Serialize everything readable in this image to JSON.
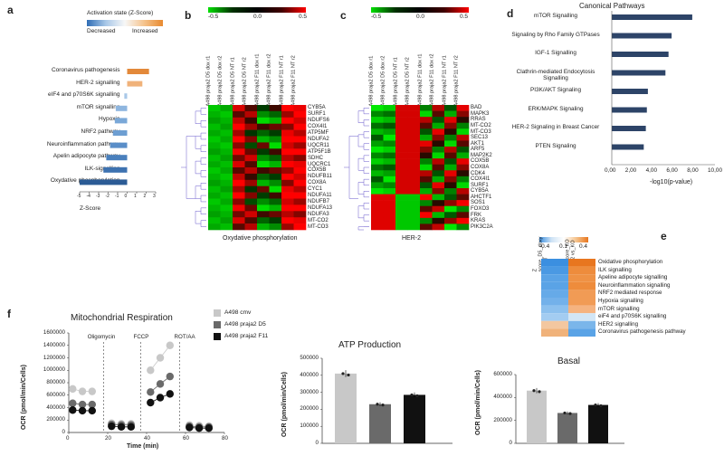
{
  "panels": {
    "a": "a",
    "b": "b",
    "c": "c",
    "d": "d",
    "e": "e",
    "f": "f"
  },
  "panel_a": {
    "legend_title": "Activation state (Z-Score)",
    "legend_left": "Decreased",
    "legend_right": "Increased",
    "xlabel": "Z-Score",
    "tick_labels": [
      "-5",
      "-4",
      "-3",
      "-2",
      "-1",
      "0",
      "1",
      "2",
      "3"
    ],
    "rows": [
      {
        "label": "Coronavirus pathogenesis",
        "value": 2.3,
        "color": "#e3893a"
      },
      {
        "label": "HER-2  signalling",
        "value": 1.6,
        "color": "#f0b27a"
      },
      {
        "label": "eIF4 and p70S6K signalling",
        "value": -0.3,
        "color": "#a9c8e8"
      },
      {
        "label": "mTOR signalling",
        "value": -1.2,
        "color": "#8fb6df"
      },
      {
        "label": "Hypoxia",
        "value": -1.3,
        "color": "#7aa8d8"
      },
      {
        "label": "NRF2 pathway",
        "value": -1.5,
        "color": "#6d9ed2"
      },
      {
        "label": "Neuroinflammation pathway",
        "value": -1.8,
        "color": "#5a8ec8"
      },
      {
        "label": "Apelin adipocyte pathway",
        "value": -2.2,
        "color": "#4a80bd"
      },
      {
        "label": "ILK-signalling",
        "value": -2.5,
        "color": "#3d72b0"
      },
      {
        "label": "Oxydative phosphorylation",
        "value": -5.0,
        "color": "#2b5b95"
      }
    ]
  },
  "panel_b": {
    "scale_ticks": [
      "-0.5",
      "0.0",
      "0.5"
    ],
    "columns": [
      "A498 praja2 D5 dox r1",
      "A498 praja2 D5 dox r2",
      "A498 praja2 D5 NT r1",
      "A498 praja2 D5 NT r2",
      "A498 praja2 F11 dox r1",
      "A498 praja2 F11 dox r2",
      "A498 praja2 F11 NT r1",
      "A498 praja2 F11 NT r2"
    ],
    "genes": [
      "CYB5A",
      "SURF1",
      "NDUFS6",
      "COX4I1",
      "ATP5MF",
      "NDUFA2",
      "UQCR11",
      "ATP5F1B",
      "SDHC",
      "UQCRC1",
      "COX5B",
      "NDUFB11",
      "COX8A",
      "CYC1",
      "NDUFA11",
      "NDUFB7",
      "NDUFA13",
      "NDUFA3",
      "MT-CO2",
      "MT-CO3"
    ],
    "caption": "Oxydative phosphorylation"
  },
  "panel_c": {
    "scale_ticks": [
      "-0.5",
      "0.0",
      "0.5"
    ],
    "columns": [
      "A498 praja2 D5 dox r1",
      "A498 praja2 D5 dox r2",
      "A498 praja2 D5 NT r1",
      "A498 praja2 D5 NT r2",
      "A498 praja2 F11 dox r1",
      "A498 praja2 F11 dox r2",
      "A498 praja2 F11 NT r1",
      "A498 praja2 F11 NT r2"
    ],
    "genes": [
      "BAD",
      "MAPK3",
      "RRAS",
      "MT-CO2",
      "MT-CO3",
      "SEC13",
      "AKT1",
      "ARF5",
      "MAP2K2",
      "COX5B",
      "COX8A",
      "CDK4",
      "COX4I1",
      "SURF1",
      "CYB5A",
      "AHCTF1",
      "SOS1",
      "FOXO3",
      "FRK",
      "KRAS",
      "PIK3C2A"
    ],
    "caption": "HER-2"
  },
  "panel_d": {
    "title": "Canonical Pathways",
    "xlabel": "-log10(p-value)",
    "tick_labels": [
      "0,00",
      "2,00",
      "4,00",
      "6,00",
      "8,00",
      "10,00"
    ],
    "rows": [
      {
        "label": "mTOR Signalling",
        "value": 7.8
      },
      {
        "label": "Signaling by Rho Family GTPases",
        "value": 5.8
      },
      {
        "label": "IGF-1 Signalling",
        "value": 5.5
      },
      {
        "label": "Clathrin-mediated Endocytosis Signalling",
        "value": 5.2
      },
      {
        "label": "PI3K/AKT Signaling",
        "value": 3.5
      },
      {
        "label": "ERK/MAPK Signaling",
        "value": 3.4
      },
      {
        "label": "HER-2 Signaling in Breast Cancer",
        "value": 3.3
      },
      {
        "label": "PTEN Signaling",
        "value": 3.1
      }
    ]
  },
  "panel_e": {
    "scale_ticks": [
      "-0.4",
      "0.1",
      "0.4"
    ],
    "columns": [
      "Z score_D5_doxy vs_NT",
      "Z score_KO pja2 vs_KO"
    ],
    "rows": [
      "Oxidative phosphorylation",
      "ILK signalling",
      "Apeline adipocyte signalling",
      "Neuroinflammation signalling",
      "NRF2 mediated response",
      "Hypoxia signalling",
      "mTOR signalling",
      "eiF4 and p70S6K signalling",
      "HER2 signalling",
      "Coronavirus pathogenesis pathway"
    ],
    "col1_colors": [
      "#3b8fe0",
      "#4a99e3",
      "#5aa3e6",
      "#5aa3e6",
      "#66aae8",
      "#73b1ea",
      "#8cc0ee",
      "#a3ccf1",
      "#f3c7a0",
      "#f0b27a"
    ],
    "col2_colors": [
      "#e8761f",
      "#ee8c3c",
      "#ef9245",
      "#ee8c3c",
      "#f19b55",
      "#f19b55",
      "#f5b380",
      "#d2e6f6",
      "#7ab6ea",
      "#5aa3e6"
    ]
  },
  "panel_f": {
    "resp_title": "Mitochondrial Respiration",
    "resp_ylabel": "OCR (pmol/min/Cells)",
    "resp_xlabel": "Time (min)",
    "resp_y_ticks": [
      "0",
      "200000",
      "400000",
      "600000",
      "800000",
      "1000000",
      "1200000",
      "1400000",
      "1600000"
    ],
    "resp_x_ticks": [
      "0",
      "20",
      "40",
      "60",
      "80"
    ],
    "injections": [
      "Oligomycin",
      "FCCP",
      "ROT/AA"
    ],
    "legend": [
      {
        "label": "A498 cmv",
        "color": "#c8c8c8"
      },
      {
        "label": "A498 praja2 D5",
        "color": "#6a6a6a"
      },
      {
        "label": "A498 praja2 F11",
        "color": "#111111"
      }
    ],
    "series": [
      {
        "name": "A498 cmv",
        "x": [
          2,
          7,
          12,
          22,
          27,
          32,
          42,
          47,
          52,
          62,
          67,
          72
        ],
        "y": [
          700000,
          660000,
          660000,
          150000,
          140000,
          140000,
          1000000,
          1200000,
          1400000,
          120000,
          110000,
          100000
        ]
      },
      {
        "name": "A498 praja2 D5",
        "x": [
          2,
          7,
          12,
          22,
          27,
          32,
          42,
          47,
          52,
          62,
          67,
          72
        ],
        "y": [
          470000,
          450000,
          450000,
          130000,
          120000,
          120000,
          650000,
          780000,
          900000,
          100000,
          90000,
          90000
        ]
      },
      {
        "name": "A498 praja2 F11",
        "x": [
          2,
          7,
          12,
          22,
          27,
          32,
          42,
          47,
          52,
          62,
          67,
          72
        ],
        "y": [
          360000,
          350000,
          350000,
          100000,
          90000,
          90000,
          480000,
          560000,
          620000,
          80000,
          70000,
          70000
        ]
      }
    ],
    "atp_title": "ATP Production",
    "atp_ylabel": "OCR (pmol/min/Cells)",
    "atp_y_ticks": [
      "0",
      "100000",
      "200000",
      "300000",
      "400000",
      "500000"
    ],
    "atp_values": [
      410000,
      230000,
      285000
    ],
    "basal_title": "Basal",
    "basal_ylabel": "OCR (pmol/min/Cells)",
    "basal_y_ticks": [
      "0",
      "200000",
      "400000",
      "600000"
    ],
    "basal_values": [
      460000,
      265000,
      335000
    ]
  },
  "chart_data": [
    {
      "type": "bar",
      "title": "Activation state (Z-Score)",
      "xlabel": "Z-Score",
      "categories": [
        "Coronavirus pathogenesis",
        "HER-2 signalling",
        "eIF4 and p70S6K signalling",
        "mTOR signalling",
        "Hypoxia",
        "NRF2 pathway",
        "Neuroinflammation pathway",
        "Apelin adipocyte pathway",
        "ILK-signalling",
        "Oxydative phosphorylation"
      ],
      "values": [
        2.3,
        1.6,
        -0.3,
        -1.2,
        -1.3,
        -1.5,
        -1.8,
        -2.2,
        -2.5,
        -5.0
      ],
      "xlim": [
        -5,
        3
      ]
    },
    {
      "type": "bar",
      "title": "Canonical Pathways",
      "xlabel": "-log10(p-value)",
      "categories": [
        "mTOR Signalling",
        "Signaling by Rho Family GTPases",
        "IGF-1 Signalling",
        "Clathrin-mediated Endocytosis Signalling",
        "PI3K/AKT Signaling",
        "ERK/MAPK Signaling",
        "HER-2 Signaling in Breast Cancer",
        "PTEN Signaling"
      ],
      "values": [
        7.8,
        5.8,
        5.5,
        5.2,
        3.5,
        3.4,
        3.3,
        3.1
      ],
      "xlim": [
        0,
        10
      ]
    },
    {
      "type": "line",
      "title": "Mitochondrial Respiration",
      "xlabel": "Time (min)",
      "ylabel": "OCR (pmol/min/Cells)",
      "ylim": [
        0,
        1600000
      ],
      "xlim": [
        0,
        80
      ]
    },
    {
      "type": "bar",
      "title": "ATP Production",
      "ylabel": "OCR (pmol/min/Cells)",
      "categories": [
        "A498 cmv",
        "A498 praja2 D5",
        "A498 praja2 F11"
      ],
      "values": [
        410000,
        230000,
        285000
      ],
      "ylim": [
        0,
        500000
      ]
    },
    {
      "type": "bar",
      "title": "Basal",
      "ylabel": "OCR (pmol/min/Cells)",
      "categories": [
        "A498 cmv",
        "A498 praja2 D5",
        "A498 praja2 F11"
      ],
      "values": [
        460000,
        265000,
        335000
      ],
      "ylim": [
        0,
        600000
      ]
    }
  ]
}
